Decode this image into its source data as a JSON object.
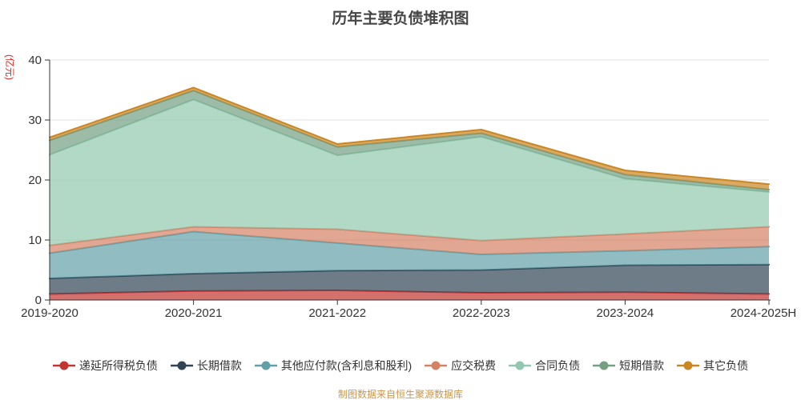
{
  "title": "历年主要负债堆积图",
  "y_axis_name": "(亿元)",
  "footer": "制图数据来自恒生聚源数据库",
  "colors": {
    "title_text": "#464646",
    "axis_label": "#333333",
    "axis_line": "#333333",
    "grid_line": "#e0e0e0",
    "y_axis_name_text": "#e01f1f",
    "footer_text": "#c9964c"
  },
  "chart_data": {
    "type": "area",
    "stacked": true,
    "title": "历年主要负债堆积图",
    "ylabel": "(亿元)",
    "xlabel": "",
    "ylim": [
      0,
      40
    ],
    "yticks": [
      0,
      10,
      20,
      30,
      40
    ],
    "grid": true,
    "legend_position": "bottom",
    "area_opacity": 0.7,
    "categories": [
      "2019-2020",
      "2020-2021",
      "2021-2022",
      "2022-2023",
      "2023-2024",
      "2024-2025H"
    ],
    "series": [
      {
        "name": "递延所得税负债",
        "id": "deferred-income-tax-liabilities",
        "color": "#c23531",
        "values": [
          1.0,
          1.5,
          1.6,
          1.2,
          1.3,
          1.0
        ]
      },
      {
        "name": "长期借款",
        "id": "long-term-loans",
        "color": "#2f4554",
        "values": [
          2.6,
          2.9,
          3.3,
          3.8,
          4.5,
          4.9
        ]
      },
      {
        "name": "其他应付款(含利息和股利)",
        "id": "other-payables-incl-interest-and-dividends",
        "color": "#61a0a8",
        "values": [
          4.2,
          7.0,
          4.6,
          2.6,
          2.4,
          3.0
        ]
      },
      {
        "name": "应交税费",
        "id": "taxes-payable",
        "color": "#d48265",
        "values": [
          1.3,
          0.8,
          2.3,
          2.3,
          2.8,
          3.3
        ]
      },
      {
        "name": "合同负债",
        "id": "contract-liabilities",
        "color": "#91c7ae",
        "values": [
          15.1,
          21.2,
          12.3,
          17.3,
          9.2,
          5.8
        ]
      },
      {
        "name": "短期借款",
        "id": "short-term-loans",
        "color": "#749f83",
        "values": [
          2.4,
          1.5,
          1.4,
          0.6,
          0.7,
          0.4
        ]
      },
      {
        "name": "其它负债",
        "id": "other-liabilities",
        "color": "#ca8622",
        "values": [
          0.5,
          0.5,
          0.5,
          0.6,
          0.7,
          0.9
        ]
      }
    ],
    "totals": [
      27.1,
      35.4,
      26.0,
      28.4,
      21.6,
      19.3
    ]
  }
}
